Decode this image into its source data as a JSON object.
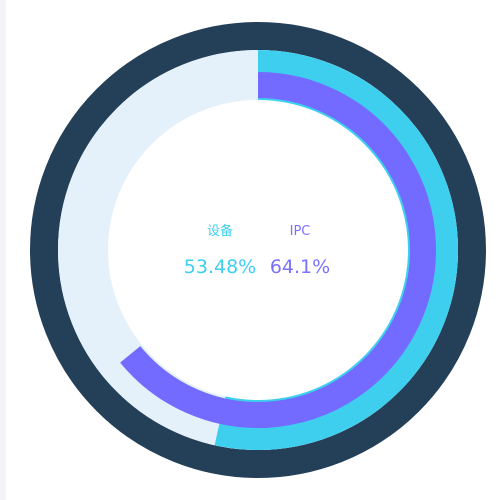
{
  "chart_data": {
    "type": "pie",
    "chart_style": "concentric-progress-rings",
    "series": [
      {
        "name": "设备",
        "value": 53.48,
        "value_label": "53.48%",
        "color": "#3ecfef"
      },
      {
        "name": "IPC",
        "value": 64.1,
        "value_label": "64.1%",
        "color": "#736bff"
      }
    ],
    "value_range": [
      0,
      100
    ],
    "title": "",
    "legend": "center",
    "colors": {
      "outer_ring": "#243f58",
      "track": "#e4f1fa",
      "background": "#ffffff"
    }
  }
}
